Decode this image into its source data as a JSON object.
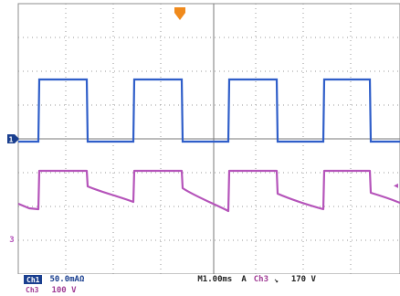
{
  "markers": {
    "trigger_position": "T",
    "ch1_ground": "1",
    "ch3_ground": "3",
    "trigger_level": "◂"
  },
  "status": {
    "ch1_label": "Ch1",
    "ch1_scale": "50.0mAΩ",
    "ch3_label": "Ch3",
    "ch3_scale": "100 V",
    "timebase": "M1.00ms",
    "trigger_mode": "A",
    "trigger_source": "Ch3",
    "trigger_slope": "↘",
    "trigger_level_value": "170 V"
  },
  "colors": {
    "ch1": "#2f5ec9",
    "ch3": "#b554ba",
    "trigger": "#f08a1c",
    "grid": "#7a7a7a",
    "status_text": "#1a3f8f"
  },
  "waveforms": {
    "ch1_shape": "square-pulse",
    "ch3_shape": "pulse-with-decay"
  }
}
